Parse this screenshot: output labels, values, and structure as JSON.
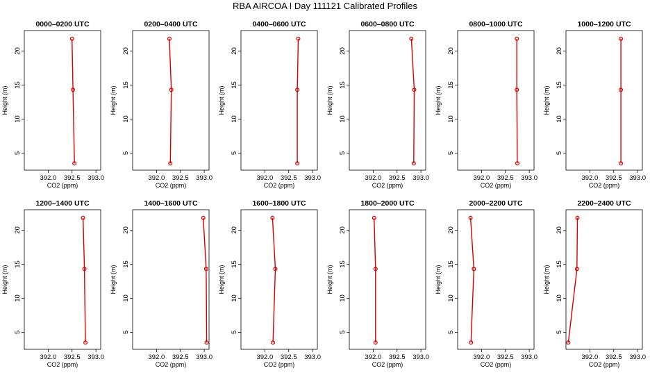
{
  "chart_data": {
    "type": "line",
    "title": "RBA AIRCOA I  Day 111121  Calibrated Profiles",
    "xlabel": "CO2 (ppm)",
    "ylabel": "Height (m)",
    "xlim": [
      391.5,
      393.1
    ],
    "ylim": [
      2.5,
      23.0
    ],
    "xticks": [
      392.0,
      392.5,
      393.0
    ],
    "xtick_labels": [
      "392.0",
      "392.5",
      "393.0"
    ],
    "yticks": [
      5,
      10,
      15,
      20
    ],
    "ytick_labels": [
      "5",
      "10",
      "15",
      "20"
    ],
    "grid": false,
    "heights": [
      3.5,
      14.3,
      21.8
    ],
    "panels": [
      {
        "title": "0000–0200 UTC",
        "co2": [
          392.55,
          392.52,
          392.5
        ]
      },
      {
        "title": "0200–0400 UTC",
        "co2": [
          392.29,
          392.31,
          392.27
        ]
      },
      {
        "title": "0400–0600 UTC",
        "co2": [
          392.68,
          392.68,
          392.7
        ]
      },
      {
        "title": "0600–0800 UTC",
        "co2": [
          392.85,
          392.86,
          392.8
        ]
      },
      {
        "title": "0800–1000 UTC",
        "co2": [
          392.75,
          392.74,
          392.74
        ]
      },
      {
        "title": "1000–1200 UTC",
        "co2": [
          392.65,
          392.65,
          392.65
        ]
      },
      {
        "title": "1200–1400 UTC",
        "co2": [
          392.78,
          392.76,
          392.73
        ]
      },
      {
        "title": "1400–1600 UTC",
        "co2": [
          393.05,
          393.04,
          392.98
        ]
      },
      {
        "title": "1600–1800 UTC",
        "co2": [
          392.17,
          392.22,
          392.16
        ]
      },
      {
        "title": "1800–2000 UTC",
        "co2": [
          392.05,
          392.05,
          392.02
        ]
      },
      {
        "title": "2000–2200 UTC",
        "co2": [
          391.78,
          391.84,
          391.77
        ]
      },
      {
        "title": "2200–2400 UTC",
        "co2": [
          391.55,
          391.73,
          391.74
        ]
      }
    ]
  },
  "colors": {
    "profile": "#d40000",
    "axes": "#000000",
    "background": "#ffffff"
  }
}
